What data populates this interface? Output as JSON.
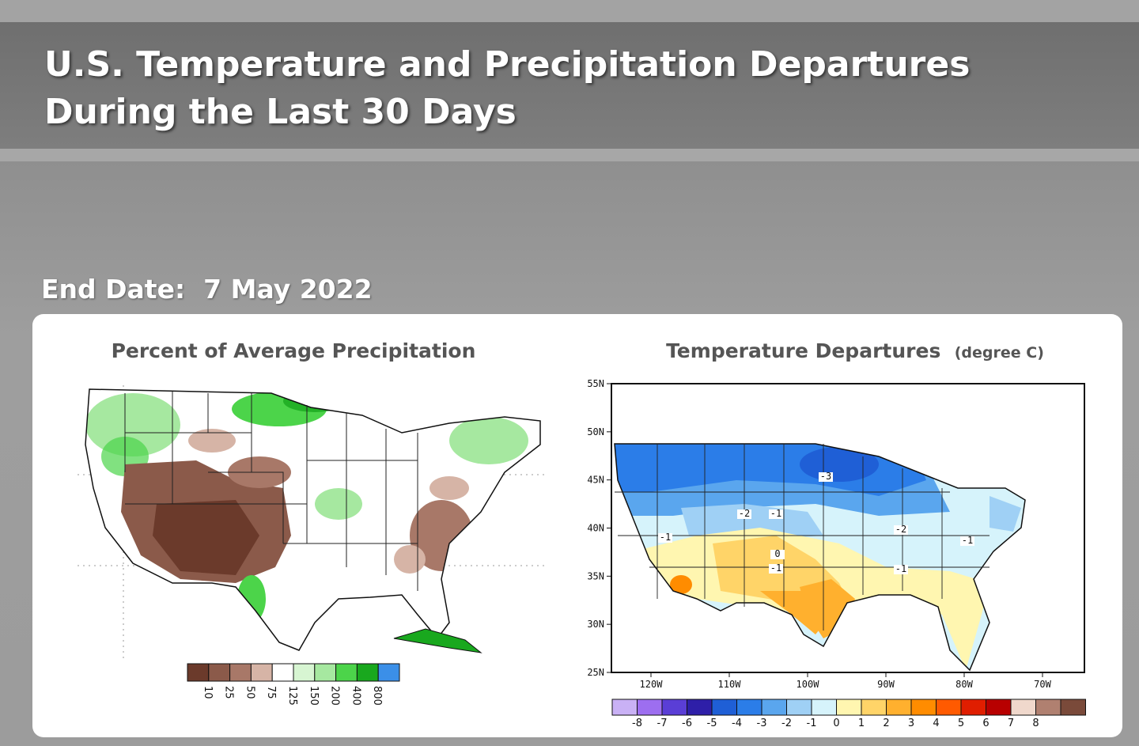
{
  "page": {
    "title": "U.S. Temperature and Precipitation Departures During the Last 30 Days",
    "end_date_label": "End Date:",
    "end_date": "7 May 2022"
  },
  "precip_map": {
    "title": "Percent of Average Precipitation",
    "colorbar": {
      "colors": [
        "#6b3a2b",
        "#8b5a4a",
        "#a87868",
        "#d6b4a6",
        "#ffffff",
        "#d7f5d2",
        "#a6e8a0",
        "#4cd44a",
        "#19a81e",
        "#3b8fe8"
      ],
      "labels": [
        "10",
        "25",
        "50",
        "75",
        "125",
        "150",
        "200",
        "400",
        "800"
      ]
    }
  },
  "temp_map": {
    "title": "Temperature Departures",
    "unit": "(degree C)",
    "lat_labels": [
      "55N",
      "50N",
      "45N",
      "40N",
      "35N",
      "30N",
      "25N"
    ],
    "lon_labels": [
      "120W",
      "110W",
      "100W",
      "90W",
      "80W",
      "70W"
    ],
    "contour_labels": [
      "-3",
      "-2",
      "-1",
      "-1",
      "-1",
      "-2",
      "-1",
      "0",
      "-1"
    ],
    "colorbar": {
      "colors": [
        "#c9b1f5",
        "#9d6ef0",
        "#5a3ed6",
        "#2e1fa8",
        "#1f5fd6",
        "#2b7de8",
        "#5aa6ee",
        "#9fd0f5",
        "#d6f3fb",
        "#fff6b0",
        "#ffd468",
        "#ffb02e",
        "#ff8c00",
        "#ff5a00",
        "#e01e00",
        "#b80000",
        "#f0d8cc",
        "#b08070",
        "#7a4a3a"
      ],
      "labels": [
        "-8",
        "-7",
        "-6",
        "-5",
        "-4",
        "-3",
        "-2",
        "-1",
        "0",
        "1",
        "2",
        "3",
        "4",
        "5",
        "6",
        "7",
        "8"
      ]
    }
  }
}
